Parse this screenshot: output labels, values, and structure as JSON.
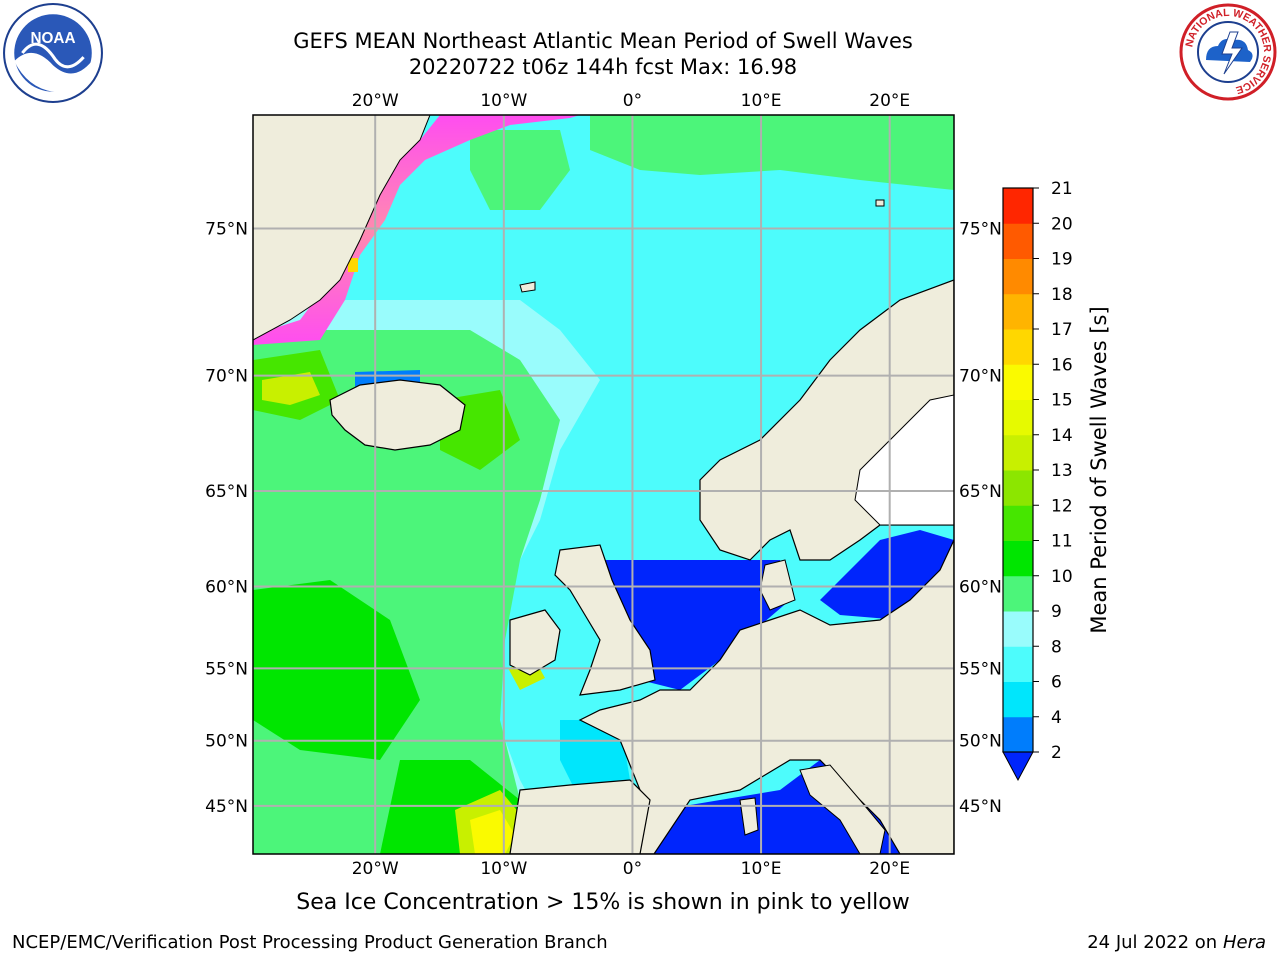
{
  "header": {
    "title_line1": "GEFS MEAN Northeast Atlantic Mean Period of Swell Waves",
    "title_line2": "20220722 t06z 144h fcst   Max: 16.98"
  },
  "map": {
    "lon_labels": [
      "20°W",
      "10°W",
      "0°",
      "10°E",
      "20°E"
    ],
    "lon_values": [
      -20,
      -10,
      0,
      10,
      20
    ],
    "lat_labels": [
      "75°N",
      "70°N",
      "65°N",
      "60°N",
      "55°N",
      "50°N",
      "45°N"
    ],
    "lat_values": [
      75,
      70,
      65,
      60,
      55,
      50,
      45
    ],
    "land_color": "#efeddc",
    "grid_color": "#b0b0b0",
    "ocean_dominant_color": "#4dfcfc"
  },
  "colorbar": {
    "label": "Mean Period of Swell Waves [s]",
    "ticks": [
      "2",
      "4",
      "6",
      "8",
      "9",
      "10",
      "11",
      "12",
      "13",
      "14",
      "15",
      "16",
      "17",
      "18",
      "19",
      "20",
      "21"
    ],
    "colors": [
      "#0025fc",
      "#007dfc",
      "#00e6fc",
      "#4dfcfc",
      "#99fcfc",
      "#4cf57a",
      "#00e600",
      "#46e600",
      "#8ce600",
      "#c8f000",
      "#e6fa00",
      "#fafa00",
      "#ffd700",
      "#ffb400",
      "#ff8a00",
      "#ff5a00",
      "#ff2600",
      "#ff0000"
    ]
  },
  "caption": "Sea Ice Concentration > 15% is shown in pink to yellow",
  "footer": {
    "left": "NCEP/EMC/Verification Post Processing Product Generation Branch",
    "right_prefix": "24 Jul 2022 on ",
    "right_host": "Hera"
  },
  "logos": {
    "noaa_text": "NOAA",
    "nws_text": "NATIONAL WEATHER SERVICE"
  }
}
